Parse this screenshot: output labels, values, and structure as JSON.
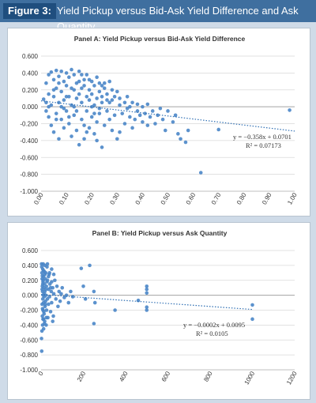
{
  "figure": {
    "number": "Figure 3:",
    "title": "Yield Pickup versus Bid-Ask Yield Difference and Ask Quantity"
  },
  "colors": {
    "header_bg": "#3f6f9f",
    "label_bg": "#1f4e7e",
    "page_bg": "#cfdbe8",
    "point": "#4a86c8",
    "trend": "#2f6fb3"
  },
  "chart_data": [
    {
      "type": "scatter",
      "title": "Panel A: Yield Pickup versus Bid-Ask Yield Difference",
      "xlim": [
        0,
        1
      ],
      "ylim": [
        -1,
        0.6
      ],
      "xticks": [
        "0.00",
        "0.10",
        "0.20",
        "0.30",
        "0.40",
        "0.50",
        "0.60",
        "0.70",
        "0.80",
        "0.90",
        "1.00"
      ],
      "yticks": [
        "0.600",
        "0.400",
        "0.200",
        "0.000",
        "-0.200",
        "-0.400",
        "-0.600",
        "-0.800",
        "-1.000"
      ],
      "grid": true,
      "trendline": {
        "slope": -0.358,
        "intercept": 0.0701,
        "equation": "y = −0.358x + 0.0701",
        "r2": "R² = 0.07173"
      },
      "points": [
        [
          0.01,
          0.09
        ],
        [
          0.02,
          0.05
        ],
        [
          0.02,
          -0.05
        ],
        [
          0.02,
          0.28
        ],
        [
          0.03,
          0.38
        ],
        [
          0.03,
          -0.12
        ],
        [
          0.03,
          0.15
        ],
        [
          0.04,
          0.41
        ],
        [
          0.04,
          -0.22
        ],
        [
          0.04,
          0.02
        ],
        [
          0.05,
          0.32
        ],
        [
          0.05,
          -0.3
        ],
        [
          0.05,
          0.12
        ],
        [
          0.06,
          0.43
        ],
        [
          0.06,
          -0.08
        ],
        [
          0.06,
          0.22
        ],
        [
          0.07,
          0.36
        ],
        [
          0.07,
          -0.38
        ],
        [
          0.07,
          0.05
        ],
        [
          0.08,
          0.42
        ],
        [
          0.08,
          -0.15
        ],
        [
          0.08,
          0.18
        ],
        [
          0.09,
          0.3
        ],
        [
          0.09,
          -0.25
        ],
        [
          0.09,
          0.08
        ],
        [
          0.1,
          0.4
        ],
        [
          0.1,
          -0.05
        ],
        [
          0.1,
          0.25
        ],
        [
          0.11,
          0.35
        ],
        [
          0.11,
          -0.2
        ],
        [
          0.11,
          0.12
        ],
        [
          0.12,
          0.44
        ],
        [
          0.12,
          -0.35
        ],
        [
          0.12,
          0.02
        ],
        [
          0.13,
          0.38
        ],
        [
          0.13,
          -0.1
        ],
        [
          0.13,
          0.2
        ],
        [
          0.14,
          0.28
        ],
        [
          0.14,
          -0.28
        ],
        [
          0.14,
          0.1
        ],
        [
          0.15,
          0.42
        ],
        [
          0.15,
          -0.45
        ],
        [
          0.15,
          0.15
        ],
        [
          0.16,
          0.22
        ],
        [
          0.16,
          -0.15
        ],
        [
          0.16,
          0.05
        ],
        [
          0.17,
          0.32
        ],
        [
          0.17,
          -0.38
        ],
        [
          0.17,
          0.25
        ],
        [
          0.18,
          0.12
        ],
        [
          0.18,
          -0.05
        ],
        [
          0.18,
          0.38
        ],
        [
          0.19,
          0.2
        ],
        [
          0.19,
          -0.25
        ],
        [
          0.19,
          0.08
        ],
        [
          0.2,
          0.3
        ],
        [
          0.2,
          -0.12
        ],
        [
          0.2,
          0.15
        ],
        [
          0.21,
          0.25
        ],
        [
          0.21,
          -0.32
        ],
        [
          0.21,
          0.02
        ],
        [
          0.22,
          0.35
        ],
        [
          0.22,
          -0.18
        ],
        [
          0.22,
          0.1
        ],
        [
          0.23,
          0.18
        ],
        [
          0.23,
          -0.08
        ],
        [
          0.23,
          0.28
        ],
        [
          0.24,
          0.12
        ],
        [
          0.24,
          -0.48
        ],
        [
          0.24,
          0.05
        ],
        [
          0.25,
          0.22
        ],
        [
          0.25,
          -0.22
        ],
        [
          0.26,
          0.15
        ],
        [
          0.26,
          -0.05
        ],
        [
          0.27,
          0.3
        ],
        [
          0.27,
          -0.15
        ],
        [
          0.28,
          0.08
        ],
        [
          0.28,
          0.2
        ],
        [
          0.29,
          -0.1
        ],
        [
          0.29,
          0.12
        ],
        [
          0.3,
          0.18
        ],
        [
          0.3,
          -0.38
        ],
        [
          0.31,
          0.02
        ],
        [
          0.31,
          0.1
        ],
        [
          0.32,
          -0.08
        ],
        [
          0.33,
          0.05
        ],
        [
          0.33,
          -0.2
        ],
        [
          0.34,
          0.12
        ],
        [
          0.35,
          -0.12
        ],
        [
          0.35,
          0.0
        ],
        [
          0.36,
          0.05
        ],
        [
          0.37,
          -0.15
        ],
        [
          0.38,
          -0.05
        ],
        [
          0.38,
          0.03
        ],
        [
          0.39,
          -0.1
        ],
        [
          0.4,
          -0.18
        ],
        [
          0.4,
          0.0
        ],
        [
          0.41,
          -0.08
        ],
        [
          0.42,
          0.03
        ],
        [
          0.43,
          -0.12
        ],
        [
          0.44,
          -0.05
        ],
        [
          0.45,
          -0.2
        ],
        [
          0.46,
          -0.1
        ],
        [
          0.47,
          -0.02
        ],
        [
          0.48,
          -0.15
        ],
        [
          0.5,
          -0.05
        ],
        [
          0.52,
          -0.18
        ],
        [
          0.53,
          -0.1
        ],
        [
          0.54,
          -0.32
        ],
        [
          0.55,
          -0.38
        ],
        [
          0.57,
          -0.42
        ],
        [
          0.63,
          -0.78
        ],
        [
          0.7,
          -0.27
        ],
        [
          0.98,
          -0.04
        ],
        [
          0.05,
          0.2
        ],
        [
          0.07,
          0.28
        ],
        [
          0.09,
          -0.02
        ],
        [
          0.11,
          -0.12
        ],
        [
          0.13,
          0.0
        ],
        [
          0.15,
          0.3
        ],
        [
          0.17,
          -0.22
        ],
        [
          0.19,
          0.32
        ],
        [
          0.21,
          -0.08
        ],
        [
          0.23,
          -0.02
        ],
        [
          0.25,
          0.28
        ],
        [
          0.27,
          0.05
        ],
        [
          0.03,
          0.0
        ],
        [
          0.06,
          -0.15
        ],
        [
          0.08,
          0.0
        ],
        [
          0.1,
          0.12
        ],
        [
          0.12,
          0.22
        ],
        [
          0.14,
          -0.05
        ],
        [
          0.16,
          0.38
        ],
        [
          0.18,
          -0.3
        ],
        [
          0.2,
          0.0
        ],
        [
          0.22,
          -0.4
        ],
        [
          0.24,
          0.25
        ],
        [
          0.26,
          0.08
        ],
        [
          0.28,
          -0.28
        ],
        [
          0.31,
          -0.3
        ],
        [
          0.34,
          -0.02
        ],
        [
          0.36,
          -0.25
        ],
        [
          0.42,
          -0.22
        ],
        [
          0.49,
          -0.28
        ],
        [
          0.58,
          -0.28
        ]
      ]
    },
    {
      "type": "scatter",
      "title": "Panel B: Yield Pickup versus Ask Quantity",
      "xlim": [
        0,
        1200
      ],
      "ylim": [
        -1,
        0.6
      ],
      "xticks": [
        "0",
        "200",
        "400",
        "600",
        "800",
        "1000",
        "1200"
      ],
      "yticks": [
        "0.600",
        "0.400",
        "0.200",
        "0.000",
        "-0.200",
        "-0.400",
        "-0.600",
        "-0.800",
        "-1.000"
      ],
      "grid": true,
      "trendline": {
        "slope": -0.0002,
        "intercept": 0.0095,
        "equation": "y = −0.0002x + 0.0095",
        "r2": "R² = 0.0105"
      },
      "points": [
        [
          2,
          0.42
        ],
        [
          3,
          0.38
        ],
        [
          4,
          0.3
        ],
        [
          5,
          0.22
        ],
        [
          5,
          -0.12
        ],
        [
          6,
          0.12
        ],
        [
          6,
          -0.28
        ],
        [
          7,
          0.05
        ],
        [
          7,
          -0.4
        ],
        [
          8,
          0.35
        ],
        [
          8,
          -0.05
        ],
        [
          9,
          0.18
        ],
        [
          9,
          -0.2
        ],
        [
          10,
          0.42
        ],
        [
          10,
          0.0
        ],
        [
          11,
          -0.32
        ],
        [
          12,
          0.25
        ],
        [
          12,
          -0.1
        ],
        [
          13,
          0.1
        ],
        [
          14,
          -0.25
        ],
        [
          15,
          0.32
        ],
        [
          15,
          -0.02
        ],
        [
          16,
          0.15
        ],
        [
          17,
          -0.35
        ],
        [
          18,
          0.4
        ],
        [
          18,
          0.05
        ],
        [
          19,
          -0.15
        ],
        [
          20,
          0.22
        ],
        [
          21,
          -0.08
        ],
        [
          22,
          0.3
        ],
        [
          23,
          0.0
        ],
        [
          24,
          -0.4
        ],
        [
          25,
          0.12
        ],
        [
          26,
          -0.2
        ],
        [
          28,
          0.38
        ],
        [
          30,
          -0.05
        ],
        [
          30,
          0.2
        ],
        [
          32,
          -0.3
        ],
        [
          35,
          0.08
        ],
        [
          35,
          -0.12
        ],
        [
          38,
          0.28
        ],
        [
          40,
          -0.02
        ],
        [
          42,
          0.15
        ],
        [
          45,
          -0.22
        ],
        [
          48,
          0.05
        ],
        [
          50,
          0.35
        ],
        [
          50,
          -0.1
        ],
        [
          55,
          0.1
        ],
        [
          58,
          -0.28
        ],
        [
          60,
          0.02
        ],
        [
          65,
          0.2
        ],
        [
          70,
          -0.05
        ],
        [
          75,
          0.12
        ],
        [
          80,
          -0.15
        ],
        [
          85,
          0.05
        ],
        [
          90,
          -0.08
        ],
        [
          95,
          0.02
        ],
        [
          100,
          0.1
        ],
        [
          110,
          -0.03
        ],
        [
          120,
          0.0
        ],
        [
          130,
          -0.1
        ],
        [
          140,
          0.05
        ],
        [
          150,
          -0.02
        ],
        [
          2,
          -0.58
        ],
        [
          3,
          -0.75
        ],
        [
          4,
          -0.48
        ],
        [
          5,
          0.08
        ],
        [
          6,
          0.26
        ],
        [
          7,
          -0.18
        ],
        [
          8,
          0.15
        ],
        [
          9,
          -0.32
        ],
        [
          10,
          0.2
        ],
        [
          11,
          0.33
        ],
        [
          12,
          -0.45
        ],
        [
          13,
          -0.22
        ],
        [
          14,
          0.02
        ],
        [
          16,
          -0.38
        ],
        [
          18,
          0.28
        ],
        [
          20,
          -0.12
        ],
        [
          22,
          0.08
        ],
        [
          25,
          -0.3
        ],
        [
          28,
          0.18
        ],
        [
          30,
          0.42
        ],
        [
          35,
          0.25
        ],
        [
          40,
          0.3
        ],
        [
          45,
          0.1
        ],
        [
          50,
          0.18
        ],
        [
          55,
          -0.35
        ],
        [
          60,
          0.28
        ],
        [
          190,
          0.36
        ],
        [
          200,
          0.12
        ],
        [
          210,
          -0.05
        ],
        [
          230,
          0.4
        ],
        [
          250,
          0.05
        ],
        [
          250,
          -0.38
        ],
        [
          255,
          -0.1
        ],
        [
          350,
          -0.2
        ],
        [
          460,
          -0.07
        ],
        [
          500,
          0.12
        ],
        [
          500,
          0.08
        ],
        [
          500,
          0.03
        ],
        [
          500,
          -0.16
        ],
        [
          500,
          -0.2
        ],
        [
          1000,
          -0.13
        ],
        [
          1000,
          -0.32
        ]
      ]
    }
  ]
}
